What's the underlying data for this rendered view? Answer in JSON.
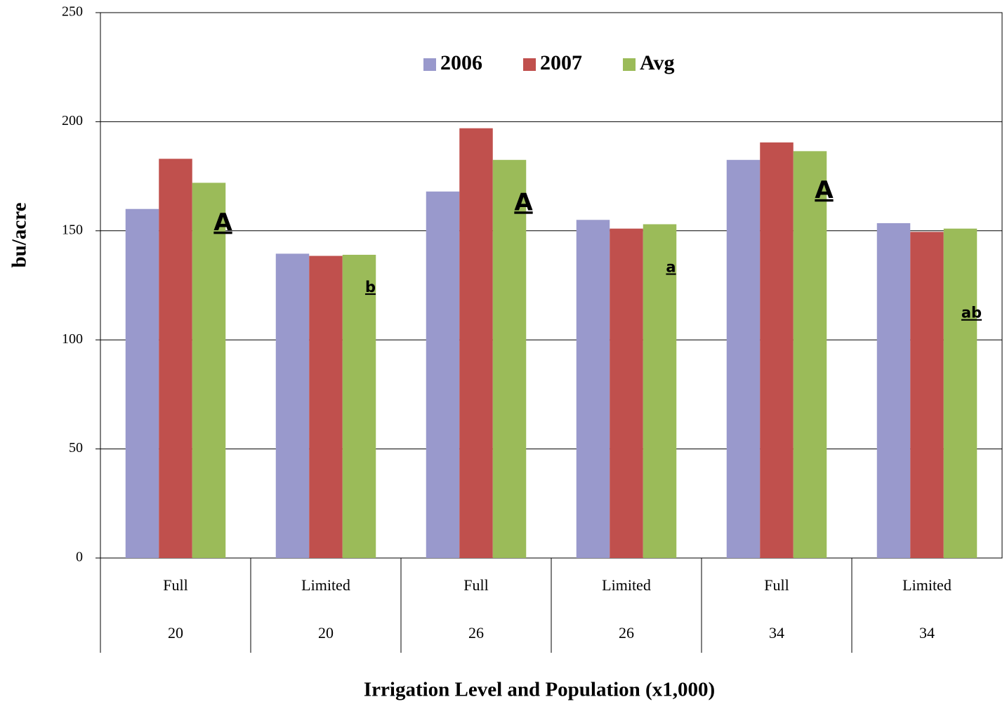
{
  "chart_data": {
    "type": "bar",
    "y_label": "bu/acre",
    "x_label": "Irrigation Level and Population (x1,000)",
    "categories": [
      "Full",
      "Limited",
      "Full",
      "Limited",
      "Full",
      "Limited"
    ],
    "populations": [
      "20",
      "20",
      "26",
      "26",
      "34",
      "34"
    ],
    "series": [
      {
        "name": "2006",
        "color": "#9999cc",
        "values": [
          160,
          139.5,
          168,
          155,
          182.5,
          153.5
        ]
      },
      {
        "name": "2007",
        "color": "#c0504d",
        "values": [
          183,
          138.5,
          197,
          151,
          190.5,
          149.5
        ]
      },
      {
        "name": "Avg",
        "color": "#9bbb59",
        "values": [
          172,
          139,
          182.5,
          153,
          186.5,
          151
        ]
      }
    ],
    "annotations": [
      "A",
      "b",
      "A",
      "a",
      "A",
      "ab"
    ],
    "ylim": [
      0,
      250
    ],
    "yticks": [
      0,
      50,
      100,
      150,
      200,
      250
    ],
    "grid": true
  }
}
